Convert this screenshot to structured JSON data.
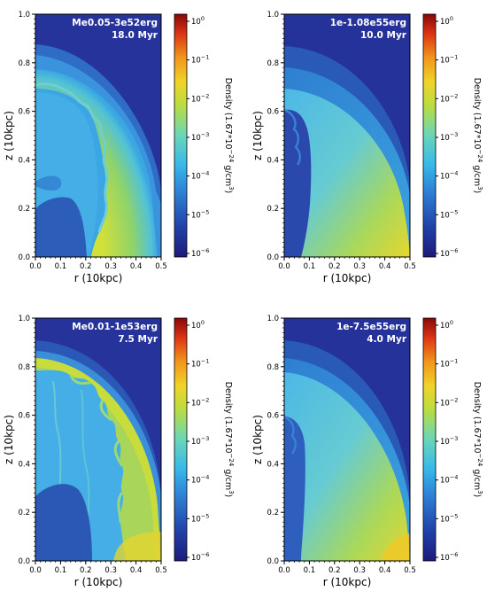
{
  "figure": {
    "x_axis_label": "r (10kpc)",
    "y_axis_label": "z (10kpc)",
    "colorbar_label": "Density (1.67*10",
    "colorbar_label_exp": "−24",
    "colorbar_label_unit": " g/cm",
    "colorbar_label_unit_exp": "3",
    "colorbar_label_close": ")",
    "x_ticks": [
      "0.0",
      "0.1",
      "0.2",
      "0.3",
      "0.4",
      "0.5"
    ],
    "y_ticks": [
      "0.0",
      "0.2",
      "0.4",
      "0.6",
      "0.8",
      "1.0"
    ],
    "colorbar_ticks": [
      {
        "base": "10",
        "exp": "0"
      },
      {
        "base": "10",
        "exp": "−1"
      },
      {
        "base": "10",
        "exp": "−2"
      },
      {
        "base": "10",
        "exp": "−3"
      },
      {
        "base": "10",
        "exp": "−4"
      },
      {
        "base": "10",
        "exp": "−5"
      },
      {
        "base": "10",
        "exp": "−6"
      }
    ],
    "colormap": [
      "#2b1e8c",
      "#1f4fb5",
      "#2f9be0",
      "#4fd0e8",
      "#8fd860",
      "#ecd52a",
      "#f08a1e",
      "#d21f16",
      "#8c0a0a"
    ]
  },
  "panels": [
    {
      "model": "Me0.05-3e52erg",
      "time": "18.0 Myr"
    },
    {
      "model": "1e-1.08e55erg",
      "time": "10.0 Myr"
    },
    {
      "model": "Me0.01-1e53erg",
      "time": "7.5 Myr"
    },
    {
      "model": "1e-7.5e55erg",
      "time": "4.0 Myr"
    }
  ]
}
